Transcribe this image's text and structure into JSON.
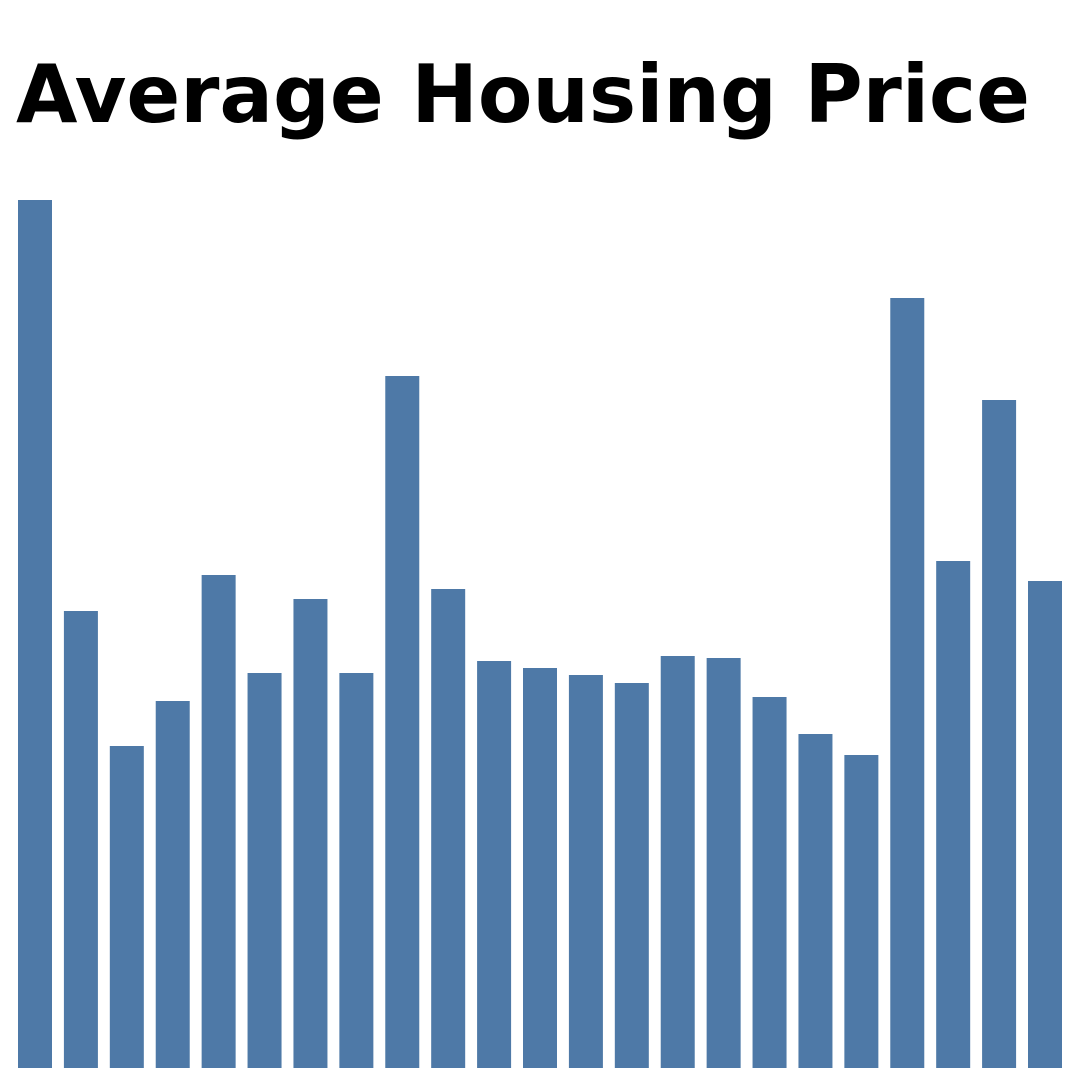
{
  "chart_data": {
    "type": "bar",
    "title": "Average Housing Price",
    "categories": [
      null,
      null,
      null,
      null,
      null,
      null,
      null,
      null,
      null,
      null,
      null,
      null,
      null,
      null,
      null,
      null,
      null,
      null,
      null,
      null,
      null,
      null,
      null
    ],
    "values": [
      868,
      457,
      322,
      367,
      493,
      395,
      469,
      395,
      692,
      479,
      407,
      400,
      393,
      385,
      412,
      410,
      371,
      334,
      313,
      770,
      507,
      668,
      487
    ],
    "color": "#4e79a7",
    "ylim": [
      0,
      868
    ]
  }
}
